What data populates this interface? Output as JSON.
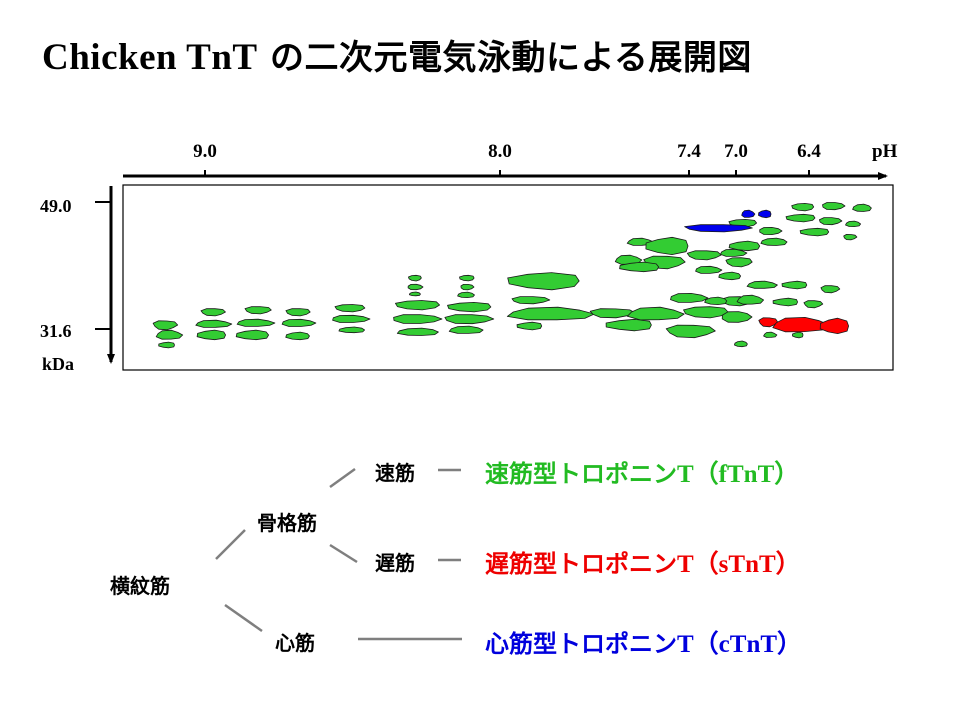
{
  "title": {
    "latin": "Chicken TnT",
    "jp": "の二次元電気泳動による展開図"
  },
  "gel": {
    "ph_axis": {
      "ticks": [
        "9.0",
        "8.0",
        "7.4",
        "7.0",
        "6.4"
      ],
      "unit": "pH"
    },
    "mw_axis": {
      "ticks": [
        "49.0",
        "31.6"
      ],
      "unit": "kDa"
    },
    "spot_colors": {
      "default": "#33cc33",
      "red": "#ff0000",
      "blue": "#0000ee",
      "outline": "#1a1a1a"
    }
  },
  "tree": {
    "root": "横紋筋",
    "skeletal": "骨格筋",
    "fast": "速筋",
    "slow": "遅筋",
    "cardiac": "心筋",
    "line_color": "#7f7f7f"
  },
  "troponin_types": [
    {
      "jp": "速筋型トロポニン",
      "latin": "T（fTnT）",
      "color": "#22bb22"
    },
    {
      "jp": "遅筋型トロポニン",
      "latin": "T（sTnT）",
      "color": "#ee0000"
    },
    {
      "jp": "心筋型トロポニン",
      "latin": "T（cTnT）",
      "color": "#0000dd"
    }
  ]
}
